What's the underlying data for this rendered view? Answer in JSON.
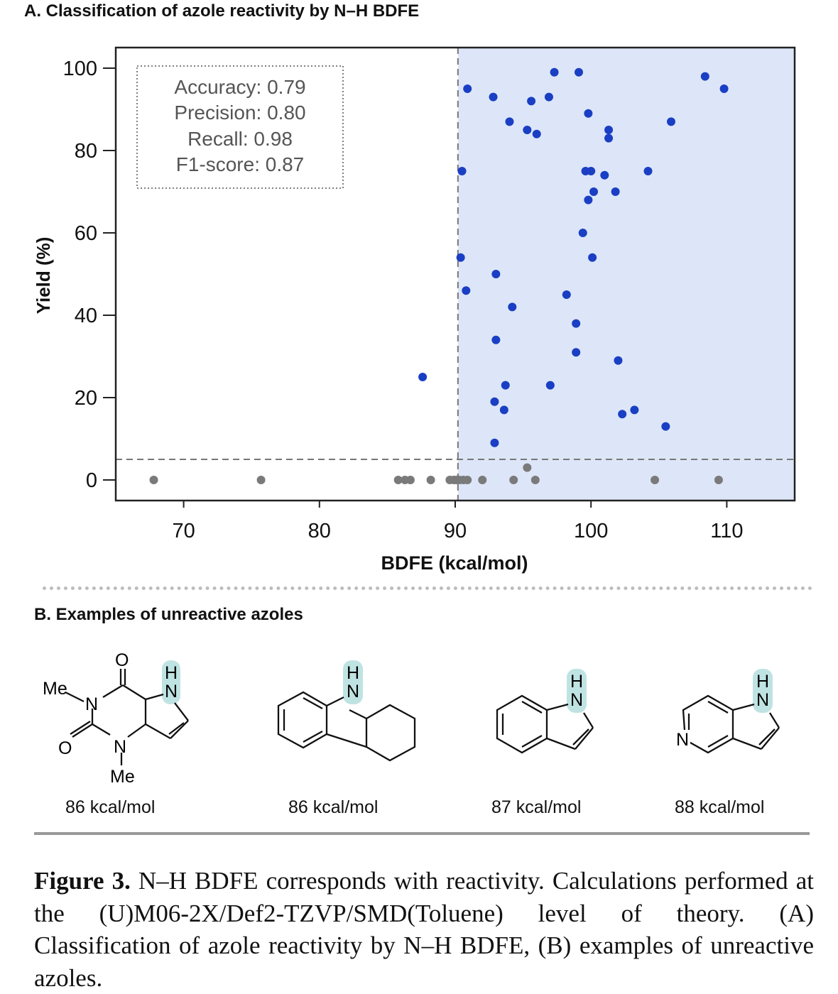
{
  "panel_a_title": "A. Classification of azole reactivity by N–H BDFE",
  "panel_b_title": "B. Examples of unreactive azoles",
  "chart_data": {
    "type": "scatter",
    "title": "A. Classification of azole reactivity by N–H BDFE",
    "xlabel": "BDFE (kcal/mol)",
    "ylabel": "Yield (%)",
    "xlim": [
      65,
      115
    ],
    "ylim": [
      -5,
      105
    ],
    "xticks": [
      70,
      80,
      90,
      100,
      110
    ],
    "yticks": [
      0,
      20,
      40,
      60,
      80,
      100
    ],
    "threshold_x": 90.2,
    "threshold_y": 5,
    "shaded_region": "x > 90.2",
    "shade_color": "#dde6f8",
    "metrics": [
      "Accuracy: 0.79",
      "Precision: 0.80",
      "Recall: 0.98",
      "F1-score: 0.87"
    ],
    "series": [
      {
        "color": "#1a3fc4",
        "points": [
          [
            97.3,
            99
          ],
          [
            99.1,
            99
          ],
          [
            108.4,
            98
          ],
          [
            109.8,
            95
          ],
          [
            90.9,
            95
          ],
          [
            92.8,
            93
          ],
          [
            96.9,
            93
          ],
          [
            95.6,
            92
          ],
          [
            99.8,
            89
          ],
          [
            94.0,
            87
          ],
          [
            105.9,
            87
          ],
          [
            95.3,
            85
          ],
          [
            96.0,
            84
          ],
          [
            101.3,
            85
          ],
          [
            101.3,
            83
          ],
          [
            90.5,
            75
          ],
          [
            99.6,
            75
          ],
          [
            100.0,
            75
          ],
          [
            101.0,
            74
          ],
          [
            104.2,
            75
          ],
          [
            100.2,
            70
          ],
          [
            101.8,
            70
          ],
          [
            99.8,
            68
          ],
          [
            99.4,
            60
          ],
          [
            90.4,
            54
          ],
          [
            100.1,
            54
          ],
          [
            93.0,
            50
          ],
          [
            90.8,
            46
          ],
          [
            98.2,
            45
          ],
          [
            94.2,
            42
          ],
          [
            98.9,
            38
          ],
          [
            93.0,
            34
          ],
          [
            98.9,
            31
          ],
          [
            102.0,
            29
          ],
          [
            87.6,
            25
          ],
          [
            93.7,
            23
          ],
          [
            97.0,
            23
          ],
          [
            92.9,
            19
          ],
          [
            93.6,
            17
          ],
          [
            102.3,
            16
          ],
          [
            103.2,
            17
          ],
          [
            105.5,
            13
          ],
          [
            92.9,
            9
          ]
        ]
      },
      {
        "color": "#7a7a7a",
        "points": [
          [
            67.8,
            0
          ],
          [
            75.7,
            0
          ],
          [
            85.8,
            0
          ],
          [
            86.3,
            0
          ],
          [
            86.7,
            0
          ],
          [
            88.2,
            0
          ],
          [
            89.6,
            0
          ],
          [
            89.9,
            0
          ],
          [
            90.1,
            0
          ],
          [
            90.3,
            0
          ],
          [
            90.6,
            0
          ],
          [
            90.9,
            0
          ],
          [
            92.0,
            0
          ],
          [
            94.3,
            0
          ],
          [
            95.3,
            3
          ],
          [
            95.9,
            0
          ],
          [
            104.7,
            0
          ],
          [
            109.4,
            0
          ]
        ]
      }
    ]
  },
  "structures": [
    {
      "label": "86 kcal/mol",
      "atoms": {
        "o1": "O",
        "o2": "O",
        "n1": "N",
        "n2": "N",
        "me1": "Me",
        "me2": "Me",
        "h": "H",
        "nh": "N"
      }
    },
    {
      "label": "86 kcal/mol",
      "atoms": {
        "h": "H",
        "nh": "N"
      }
    },
    {
      "label": "87 kcal/mol",
      "atoms": {
        "h": "H",
        "nh": "N"
      }
    },
    {
      "label": "88 kcal/mol",
      "atoms": {
        "h": "H",
        "nh": "N",
        "n": "N"
      }
    }
  ],
  "caption": {
    "label": "Figure 3.",
    "text": " N–H BDFE corresponds with reactivity. Calculations performed at the (U)M06-2X/Def2-TZVP/SMD(Toluene) level of theory. (A) Classification of azole reactivity by N–H BDFE, (B) examples of unreactive azoles."
  }
}
